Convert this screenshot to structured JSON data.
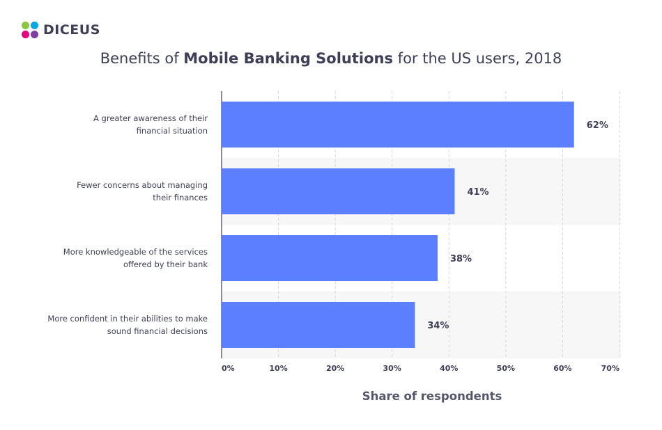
{
  "brand": {
    "name": "DICEUS",
    "colors": [
      "#8cc63f",
      "#0ba5e0",
      "#e6007e",
      "#7b3fa0"
    ]
  },
  "title": {
    "prefix": "Benefits of ",
    "bold": "Mobile Banking Solutions",
    "suffix": " for the US users, 2018"
  },
  "chart_data": {
    "type": "bar",
    "orientation": "horizontal",
    "categories": [
      [
        "A greater awareness of their",
        "financial situation"
      ],
      [
        "Fewer concerns about managing",
        "their finances"
      ],
      [
        "More knowledgeable of the services",
        "offered by their bank"
      ],
      [
        "More confident in their abilities to make",
        "sound financial decisions"
      ]
    ],
    "values": [
      62,
      41,
      38,
      34
    ],
    "value_labels": [
      "62%",
      "41%",
      "38%",
      "34%"
    ],
    "xlim": [
      0,
      70
    ],
    "ticks": [
      0,
      10,
      20,
      30,
      40,
      50,
      60,
      70
    ],
    "tick_labels": [
      "0%",
      "10%",
      "20%",
      "30%",
      "40%",
      "50%",
      "60%",
      "70%"
    ],
    "xlabel": "Share of respondents",
    "ylabel": "",
    "grid": "vertical-dashed",
    "bar_color": "#5b7fff",
    "band_color": "#f7f7f7"
  }
}
